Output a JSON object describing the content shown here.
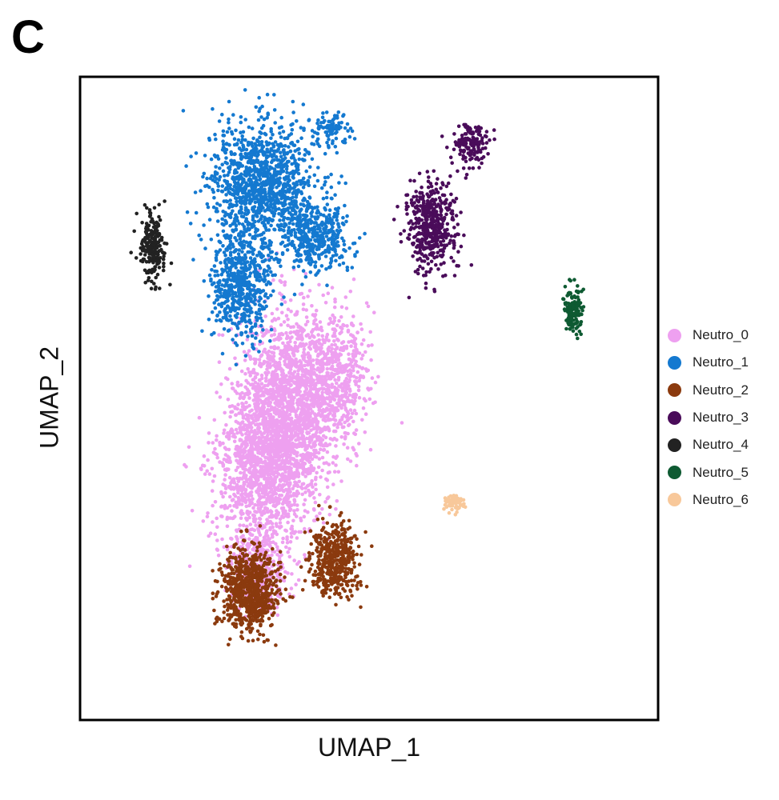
{
  "panel_label": "C",
  "chart_data": {
    "type": "scatter",
    "title": "",
    "xlabel": "UMAP_1",
    "ylabel": "UMAP_2",
    "grid": false,
    "axis_ticks": false,
    "legend_position": "right",
    "point_size": "small",
    "series": [
      {
        "name": "Neutro_0",
        "color": "#EEA0F0",
        "clusters": [
          {
            "center": [
              3.6,
              -0.5
            ],
            "spread": [
              1.0,
              2.4
            ],
            "n": 1800
          },
          {
            "center": [
              3.0,
              -1.8
            ],
            "spread": [
              0.9,
              1.8
            ],
            "n": 900
          },
          {
            "center": [
              4.6,
              0.5
            ],
            "spread": [
              0.8,
              1.5
            ],
            "n": 700
          },
          {
            "center": [
              3.0,
              -4.2
            ],
            "spread": [
              0.6,
              0.9
            ],
            "n": 350
          }
        ]
      },
      {
        "name": "Neutro_1",
        "color": "#1479D0",
        "clusters": [
          {
            "center": [
              3.1,
              5.3
            ],
            "spread": [
              1.1,
              1.4
            ],
            "n": 1200
          },
          {
            "center": [
              2.6,
              2.8
            ],
            "spread": [
              0.6,
              1.2
            ],
            "n": 550
          },
          {
            "center": [
              4.3,
              4.0
            ],
            "spread": [
              0.7,
              0.8
            ],
            "n": 350
          },
          {
            "center": [
              4.6,
              6.7
            ],
            "spread": [
              0.4,
              0.4
            ],
            "n": 90
          }
        ]
      },
      {
        "name": "Neutro_2",
        "color": "#8B3A0E",
        "clusters": [
          {
            "center": [
              2.8,
              -4.8
            ],
            "spread": [
              0.6,
              0.9
            ],
            "n": 750
          },
          {
            "center": [
              4.7,
              -4.0
            ],
            "spread": [
              0.5,
              0.8
            ],
            "n": 450
          }
        ]
      },
      {
        "name": "Neutro_3",
        "color": "#4A0C5A",
        "clusters": [
          {
            "center": [
              6.9,
              4.3
            ],
            "spread": [
              0.5,
              1.0
            ],
            "n": 450
          },
          {
            "center": [
              7.8,
              6.3
            ],
            "spread": [
              0.4,
              0.5
            ],
            "n": 150
          }
        ]
      },
      {
        "name": "Neutro_4",
        "color": "#222222",
        "clusters": [
          {
            "center": [
              0.6,
              3.8
            ],
            "spread": [
              0.25,
              0.8
            ],
            "n": 220
          }
        ]
      },
      {
        "name": "Neutro_5",
        "color": "#0E5A32",
        "clusters": [
          {
            "center": [
              10.1,
              2.2
            ],
            "spread": [
              0.2,
              0.5
            ],
            "n": 140
          }
        ]
      },
      {
        "name": "Neutro_6",
        "color": "#F8C89A",
        "clusters": [
          {
            "center": [
              7.4,
              -2.6
            ],
            "spread": [
              0.2,
              0.2
            ],
            "n": 70
          }
        ]
      }
    ],
    "xlim": [
      -1,
      12
    ],
    "ylim": [
      -8,
      8
    ]
  }
}
